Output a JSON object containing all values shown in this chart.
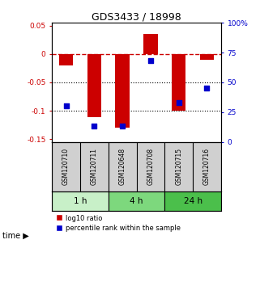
{
  "title": "GDS3433 / 18998",
  "samples": [
    "GSM120710",
    "GSM120711",
    "GSM120648",
    "GSM120708",
    "GSM120715",
    "GSM120716"
  ],
  "log10_ratio": [
    -0.02,
    -0.112,
    -0.13,
    0.035,
    -0.1,
    -0.01
  ],
  "percentile_rank": [
    30,
    13,
    13,
    68,
    33,
    45
  ],
  "time_groups": [
    {
      "label": "1 h",
      "start": 0,
      "end": 2,
      "color": "#c8f0c8"
    },
    {
      "label": "4 h",
      "start": 2,
      "end": 4,
      "color": "#7dd87d"
    },
    {
      "label": "24 h",
      "start": 4,
      "end": 6,
      "color": "#4bbf4b"
    }
  ],
  "bar_color": "#cc0000",
  "square_color": "#0000cc",
  "dashed_line_color": "#cc0000",
  "ylim_left": [
    -0.155,
    0.055
  ],
  "ylim_right": [
    0,
    100
  ],
  "yticks_left": [
    0.05,
    0,
    -0.05,
    -0.1,
    -0.15
  ],
  "yticks_left_labels": [
    "0.05",
    "0",
    "-0.05",
    "-0.1",
    "-0.15"
  ],
  "yticks_right": [
    100,
    75,
    50,
    25,
    0
  ],
  "yticks_right_labels": [
    "100%",
    "75",
    "50",
    "25",
    "0"
  ],
  "bar_width": 0.5,
  "square_size": 25,
  "legend_red_label": "log10 ratio",
  "legend_blue_label": "percentile rank within the sample",
  "left_color": "#cc0000",
  "right_color": "#0000cc",
  "sample_bg_color": "#d0d0d0",
  "xlim": [
    -0.5,
    5.5
  ]
}
